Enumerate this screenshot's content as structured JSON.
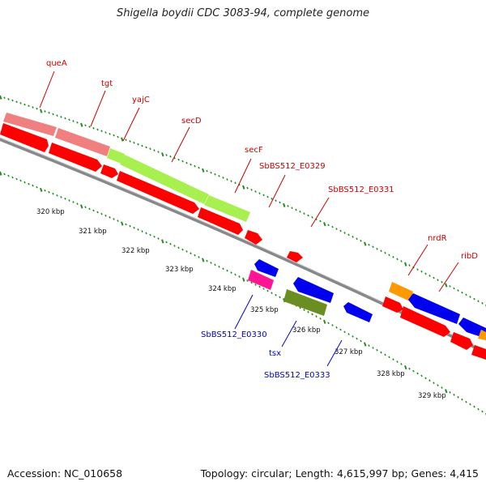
{
  "title": "Shigella boydii CDC 3083-94, complete genome",
  "footer": {
    "accession": "Accession: NC_010658",
    "summary": "Topology: circular; Length: 4,615,997 bp; Genes: 4,415"
  },
  "colors": {
    "backbone": "#8c8c8c",
    "tick_dots": "#228b22",
    "label_forward": "#cc0000",
    "label_reverse": "#0000cc",
    "gene_red": "#ff0000",
    "gene_pink": "#f08080",
    "gene_lime": "#a8f050",
    "gene_blue": "#0000ee",
    "gene_magenta": "#ff1493",
    "gene_olive": "#6b8e23",
    "gene_orange": "#ff9900"
  },
  "kbp_labels": [
    "320 kbp",
    "321 kbp",
    "322 kbp",
    "323 kbp",
    "324 kbp",
    "325 kbp",
    "326 kbp",
    "327 kbp",
    "328 kbp",
    "329 kbp"
  ],
  "gene_labels_top": [
    "queA",
    "tgt",
    "yajC",
    "secD",
    "secF",
    "SbBS512_E0329",
    "SbBS512_E0331",
    "nrdR",
    "ribD"
  ],
  "gene_labels_bottom": [
    "SbBS512_E0330",
    "tsx",
    "SbBS512_E0333"
  ]
}
